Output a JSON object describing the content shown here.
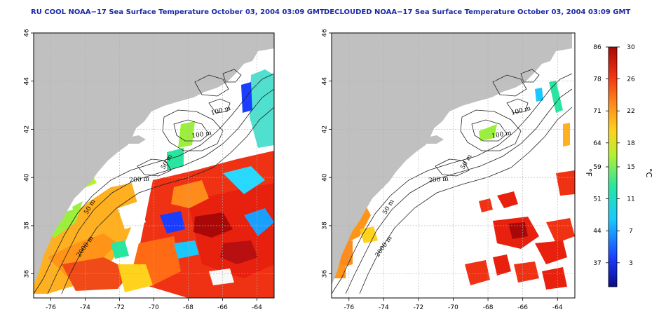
{
  "maps": [
    {
      "title": "RU COOL NOAA−17 Sea Surface Temperature October 03, 2004 03:09 GMT",
      "x_ticks": [
        "-76",
        "-74",
        "-72",
        "-70",
        "-68",
        "-66",
        "-64"
      ],
      "y_ticks": [
        "36",
        "38",
        "40",
        "42",
        "44",
        "46"
      ],
      "contour_labels": [
        "100 m",
        "100 m",
        "50 m",
        "200 m",
        "50 m",
        "2000 m"
      ]
    },
    {
      "title": "DECLOUDED NOAA−17 Sea Surface Temperature October 03, 2004 03:09 GMT",
      "x_ticks": [
        "-76",
        "-74",
        "-72",
        "-70",
        "-68",
        "-66",
        "-64"
      ],
      "y_ticks": [
        "36",
        "38",
        "40",
        "42",
        "44",
        "46"
      ],
      "contour_labels": [
        "100 m",
        "100 m",
        "50 m",
        "200 m",
        "50 m",
        "2000 m"
      ]
    }
  ],
  "colorbar": {
    "fahrenheit_ticks": [
      "86",
      "78",
      "71",
      "64",
      "59",
      "51",
      "44",
      "37"
    ],
    "celsius_ticks": [
      "30",
      "26",
      "22",
      "18",
      "15",
      "11",
      "7",
      "3"
    ],
    "fahrenheit_unit": "°F",
    "celsius_unit": "°C",
    "range_celsius": [
      0,
      30
    ],
    "colors": [
      "#0b0b8a",
      "#1a3dff",
      "#19c8ff",
      "#28e6a0",
      "#b4f032",
      "#ffd21e",
      "#ff8c1a",
      "#f03214",
      "#a80808"
    ]
  },
  "colors": {
    "land": "#c0c0c0",
    "cloud": "#ffffff",
    "title": "#1a2aa8",
    "grid": "#b0b0b0"
  }
}
